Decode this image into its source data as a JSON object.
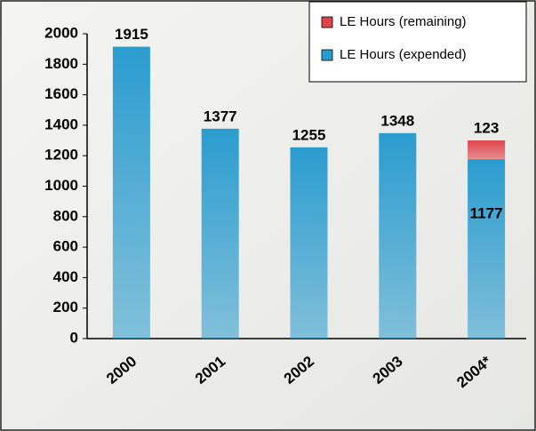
{
  "chart_data": {
    "type": "stacked-bar",
    "categories": [
      "2000",
      "2001",
      "2002",
      "2003",
      "2004*"
    ],
    "series": [
      {
        "name": "LE Hours (expended)",
        "color": "#2a9ccf",
        "values": [
          1915,
          1377,
          1255,
          1348,
          1177
        ]
      },
      {
        "name": "LE Hours (remaining)",
        "color": "#e0444a",
        "values": [
          null,
          null,
          null,
          null,
          123
        ]
      }
    ],
    "ylim": [
      0,
      2000
    ],
    "yticks": [
      0,
      200,
      400,
      600,
      800,
      1000,
      1200,
      1400,
      1600,
      1800,
      2000
    ],
    "grid": false,
    "legend": "top-right"
  }
}
